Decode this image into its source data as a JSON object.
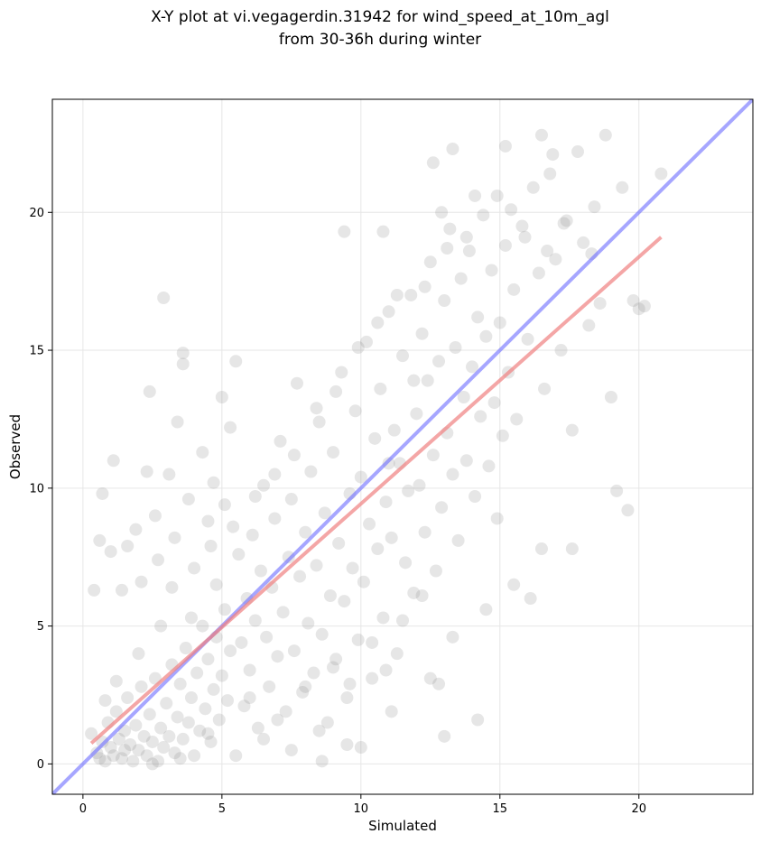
{
  "chart_data": {
    "type": "scatter",
    "title_line1": "X-Y plot at vi.vegagerdin.31942 for wind_speed_at_10m_agl",
    "title_line2": "from 30-36h during winter",
    "xlabel": "Simulated",
    "ylabel": "Observed",
    "xlim": [
      -1.1,
      24.1
    ],
    "ylim": [
      -1.1,
      24.1
    ],
    "xticks": [
      0,
      5,
      10,
      15,
      20
    ],
    "yticks": [
      0,
      5,
      10,
      15,
      20
    ],
    "grid": true,
    "point_color": "#808080",
    "identity_line": {
      "color": "#6b6bff",
      "x": [
        -1.1,
        24.1
      ],
      "y": [
        -1.1,
        24.1
      ]
    },
    "fit_line": {
      "color": "#f08080",
      "x": [
        0.3,
        20.8
      ],
      "y": [
        0.75,
        19.1
      ]
    },
    "points": [
      [
        0.3,
        1.1
      ],
      [
        0.5,
        0.4
      ],
      [
        0.6,
        0.2
      ],
      [
        0.7,
        0.8
      ],
      [
        0.8,
        0.1
      ],
      [
        0.9,
        1.5
      ],
      [
        1.0,
        0.6
      ],
      [
        1.1,
        0.3
      ],
      [
        1.2,
        1.9
      ],
      [
        1.3,
        0.9
      ],
      [
        1.4,
        0.2
      ],
      [
        1.5,
        1.2
      ],
      [
        1.6,
        2.4
      ],
      [
        1.7,
        0.7
      ],
      [
        1.8,
        0.1
      ],
      [
        1.9,
        1.4
      ],
      [
        2.0,
        0.5
      ],
      [
        2.1,
        2.8
      ],
      [
        2.2,
        1.0
      ],
      [
        2.3,
        0.3
      ],
      [
        2.4,
        1.8
      ],
      [
        2.5,
        0.8
      ],
      [
        2.6,
        3.1
      ],
      [
        2.7,
        0.1
      ],
      [
        2.8,
        1.3
      ],
      [
        2.9,
        0.6
      ],
      [
        3.0,
        2.2
      ],
      [
        3.1,
        1.0
      ],
      [
        3.2,
        3.6
      ],
      [
        3.3,
        0.4
      ],
      [
        3.4,
        1.7
      ],
      [
        3.5,
        2.9
      ],
      [
        3.6,
        0.9
      ],
      [
        3.7,
        4.2
      ],
      [
        3.8,
        1.5
      ],
      [
        3.9,
        2.4
      ],
      [
        4.0,
        0.3
      ],
      [
        4.1,
        3.3
      ],
      [
        4.2,
        1.2
      ],
      [
        4.3,
        5.0
      ],
      [
        4.4,
        2.0
      ],
      [
        4.5,
        3.8
      ],
      [
        4.6,
        0.8
      ],
      [
        4.7,
        2.7
      ],
      [
        4.8,
        4.6
      ],
      [
        4.9,
        1.6
      ],
      [
        5.0,
        3.2
      ],
      [
        5.1,
        5.6
      ],
      [
        5.2,
        2.3
      ],
      [
        5.3,
        4.1
      ],
      [
        0.4,
        6.3
      ],
      [
        0.6,
        8.1
      ],
      [
        0.7,
        9.8
      ],
      [
        1.0,
        7.7
      ],
      [
        1.1,
        11.0
      ],
      [
        1.4,
        6.3
      ],
      [
        1.6,
        7.9
      ],
      [
        1.9,
        8.5
      ],
      [
        2.1,
        6.6
      ],
      [
        2.3,
        10.6
      ],
      [
        2.4,
        13.5
      ],
      [
        2.6,
        9.0
      ],
      [
        2.7,
        7.4
      ],
      [
        2.9,
        16.9
      ],
      [
        3.1,
        10.5
      ],
      [
        3.3,
        8.2
      ],
      [
        3.4,
        12.4
      ],
      [
        3.6,
        14.9
      ],
      [
        3.6,
        14.5
      ],
      [
        3.8,
        9.6
      ],
      [
        4.0,
        7.1
      ],
      [
        4.3,
        11.3
      ],
      [
        4.5,
        8.8
      ],
      [
        4.7,
        10.2
      ],
      [
        4.8,
        6.5
      ],
      [
        5.0,
        13.3
      ],
      [
        5.1,
        9.4
      ],
      [
        5.3,
        12.2
      ],
      [
        5.5,
        14.6
      ],
      [
        5.6,
        7.6
      ],
      [
        5.7,
        4.4
      ],
      [
        5.8,
        2.1
      ],
      [
        5.9,
        6.0
      ],
      [
        6.0,
        3.4
      ],
      [
        6.1,
        8.3
      ],
      [
        6.2,
        5.2
      ],
      [
        6.3,
        1.3
      ],
      [
        6.4,
        7.0
      ],
      [
        6.5,
        10.1
      ],
      [
        6.6,
        4.6
      ],
      [
        6.7,
        2.8
      ],
      [
        6.8,
        6.4
      ],
      [
        6.9,
        8.9
      ],
      [
        7.0,
        3.9
      ],
      [
        7.1,
        11.7
      ],
      [
        7.2,
        5.5
      ],
      [
        7.3,
        1.9
      ],
      [
        7.4,
        7.5
      ],
      [
        7.5,
        9.6
      ],
      [
        7.6,
        4.1
      ],
      [
        7.7,
        13.8
      ],
      [
        7.8,
        6.8
      ],
      [
        7.9,
        2.6
      ],
      [
        8.0,
        8.4
      ],
      [
        8.1,
        5.1
      ],
      [
        8.2,
        10.6
      ],
      [
        8.3,
        3.3
      ],
      [
        8.4,
        7.2
      ],
      [
        8.5,
        12.4
      ],
      [
        8.6,
        4.7
      ],
      [
        8.7,
        9.1
      ],
      [
        8.8,
        1.5
      ],
      [
        8.9,
        6.1
      ],
      [
        9.0,
        11.3
      ],
      [
        9.1,
        3.8
      ],
      [
        9.2,
        8.0
      ],
      [
        9.3,
        14.2
      ],
      [
        9.4,
        5.9
      ],
      [
        9.5,
        2.4
      ],
      [
        9.6,
        9.8
      ],
      [
        9.7,
        7.1
      ],
      [
        9.8,
        12.8
      ],
      [
        9.9,
        4.5
      ],
      [
        10.0,
        10.4
      ],
      [
        10.1,
        6.6
      ],
      [
        10.2,
        15.3
      ],
      [
        10.3,
        8.7
      ],
      [
        10.4,
        3.1
      ],
      [
        10.5,
        11.8
      ],
      [
        10.6,
        7.8
      ],
      [
        10.7,
        13.6
      ],
      [
        10.8,
        5.3
      ],
      [
        10.9,
        9.5
      ],
      [
        11.0,
        16.4
      ],
      [
        11.1,
        8.2
      ],
      [
        11.2,
        12.1
      ],
      [
        11.3,
        4.0
      ],
      [
        11.4,
        10.9
      ],
      [
        11.5,
        14.8
      ],
      [
        11.6,
        7.3
      ],
      [
        11.7,
        9.9
      ],
      [
        11.8,
        17.0
      ],
      [
        11.9,
        6.2
      ],
      [
        12.0,
        12.7
      ],
      [
        12.1,
        10.1
      ],
      [
        12.2,
        15.6
      ],
      [
        12.3,
        8.4
      ],
      [
        12.4,
        13.9
      ],
      [
        12.5,
        18.2
      ],
      [
        12.6,
        11.2
      ],
      [
        12.7,
        7.0
      ],
      [
        12.8,
        14.6
      ],
      [
        12.9,
        9.3
      ],
      [
        13.0,
        16.8
      ],
      [
        13.1,
        12.0
      ],
      [
        13.2,
        19.4
      ],
      [
        13.3,
        10.5
      ],
      [
        13.4,
        15.1
      ],
      [
        13.5,
        8.1
      ],
      [
        13.6,
        17.6
      ],
      [
        13.7,
        13.3
      ],
      [
        13.8,
        11.0
      ],
      [
        13.9,
        18.6
      ],
      [
        14.0,
        14.4
      ],
      [
        14.1,
        9.7
      ],
      [
        14.2,
        16.2
      ],
      [
        14.3,
        12.6
      ],
      [
        14.4,
        19.9
      ],
      [
        14.5,
        15.5
      ],
      [
        14.6,
        10.8
      ],
      [
        14.7,
        17.9
      ],
      [
        14.8,
        13.1
      ],
      [
        14.9,
        20.6
      ],
      [
        15.0,
        16.0
      ],
      [
        15.1,
        11.9
      ],
      [
        15.2,
        18.8
      ],
      [
        15.3,
        14.2
      ],
      [
        15.4,
        20.1
      ],
      [
        15.5,
        17.2
      ],
      [
        15.6,
        12.5
      ],
      [
        15.8,
        19.5
      ],
      [
        16.0,
        15.4
      ],
      [
        16.2,
        20.9
      ],
      [
        16.4,
        17.8
      ],
      [
        16.6,
        13.6
      ],
      [
        16.8,
        21.4
      ],
      [
        17.0,
        18.3
      ],
      [
        17.2,
        15.0
      ],
      [
        17.4,
        19.7
      ],
      [
        17.6,
        12.1
      ],
      [
        17.8,
        22.2
      ],
      [
        18.0,
        18.9
      ],
      [
        18.2,
        15.9
      ],
      [
        18.4,
        20.2
      ],
      [
        18.6,
        16.7
      ],
      [
        18.8,
        22.8
      ],
      [
        19.0,
        13.3
      ],
      [
        19.2,
        9.9
      ],
      [
        19.4,
        20.9
      ],
      [
        19.6,
        9.2
      ],
      [
        19.8,
        16.8
      ],
      [
        20.0,
        16.5
      ],
      [
        20.2,
        16.6
      ],
      [
        20.8,
        21.4
      ],
      [
        16.5,
        22.8
      ],
      [
        16.9,
        22.1
      ],
      [
        15.2,
        22.4
      ],
      [
        13.3,
        22.3
      ],
      [
        12.6,
        21.8
      ],
      [
        11.9,
        13.9
      ],
      [
        11.0,
        10.9
      ],
      [
        13.0,
        1.0
      ],
      [
        14.2,
        1.6
      ],
      [
        12.8,
        2.9
      ],
      [
        11.1,
        1.9
      ],
      [
        10.0,
        0.6
      ],
      [
        8.6,
        0.1
      ],
      [
        9.6,
        2.9
      ],
      [
        10.4,
        4.4
      ],
      [
        11.5,
        5.2
      ],
      [
        12.2,
        6.1
      ],
      [
        13.3,
        4.6
      ],
      [
        14.5,
        5.6
      ],
      [
        15.5,
        6.5
      ],
      [
        16.5,
        7.8
      ],
      [
        17.6,
        7.8
      ],
      [
        16.1,
        6.0
      ],
      [
        14.9,
        8.9
      ],
      [
        12.5,
        3.1
      ],
      [
        10.9,
        3.4
      ],
      [
        5.5,
        0.3
      ],
      [
        6.5,
        0.9
      ],
      [
        7.5,
        0.5
      ],
      [
        8.5,
        1.2
      ],
      [
        9.5,
        0.7
      ],
      [
        6.0,
        2.4
      ],
      [
        7.0,
        1.6
      ],
      [
        8.0,
        2.8
      ],
      [
        9.0,
        3.5
      ],
      [
        4.5,
        1.1
      ],
      [
        3.5,
        0.2
      ],
      [
        2.5,
        0.0
      ],
      [
        1.5,
        0.5
      ],
      [
        0.8,
        2.3
      ],
      [
        1.2,
        3.0
      ],
      [
        2.0,
        4.0
      ],
      [
        2.8,
        5.0
      ],
      [
        3.2,
        6.4
      ],
      [
        3.9,
        5.3
      ],
      [
        4.6,
        7.9
      ],
      [
        5.4,
        8.6
      ],
      [
        6.2,
        9.7
      ],
      [
        6.9,
        10.5
      ],
      [
        7.6,
        11.2
      ],
      [
        8.4,
        12.9
      ],
      [
        9.1,
        13.5
      ],
      [
        9.9,
        15.1
      ],
      [
        10.6,
        16.0
      ],
      [
        11.3,
        17.0
      ],
      [
        10.8,
        19.3
      ],
      [
        9.4,
        19.3
      ],
      [
        12.9,
        20.0
      ],
      [
        14.1,
        20.6
      ],
      [
        13.8,
        19.1
      ],
      [
        13.1,
        18.7
      ],
      [
        12.3,
        17.3
      ],
      [
        15.9,
        19.1
      ],
      [
        16.7,
        18.6
      ],
      [
        17.3,
        19.6
      ],
      [
        18.3,
        18.5
      ]
    ]
  }
}
